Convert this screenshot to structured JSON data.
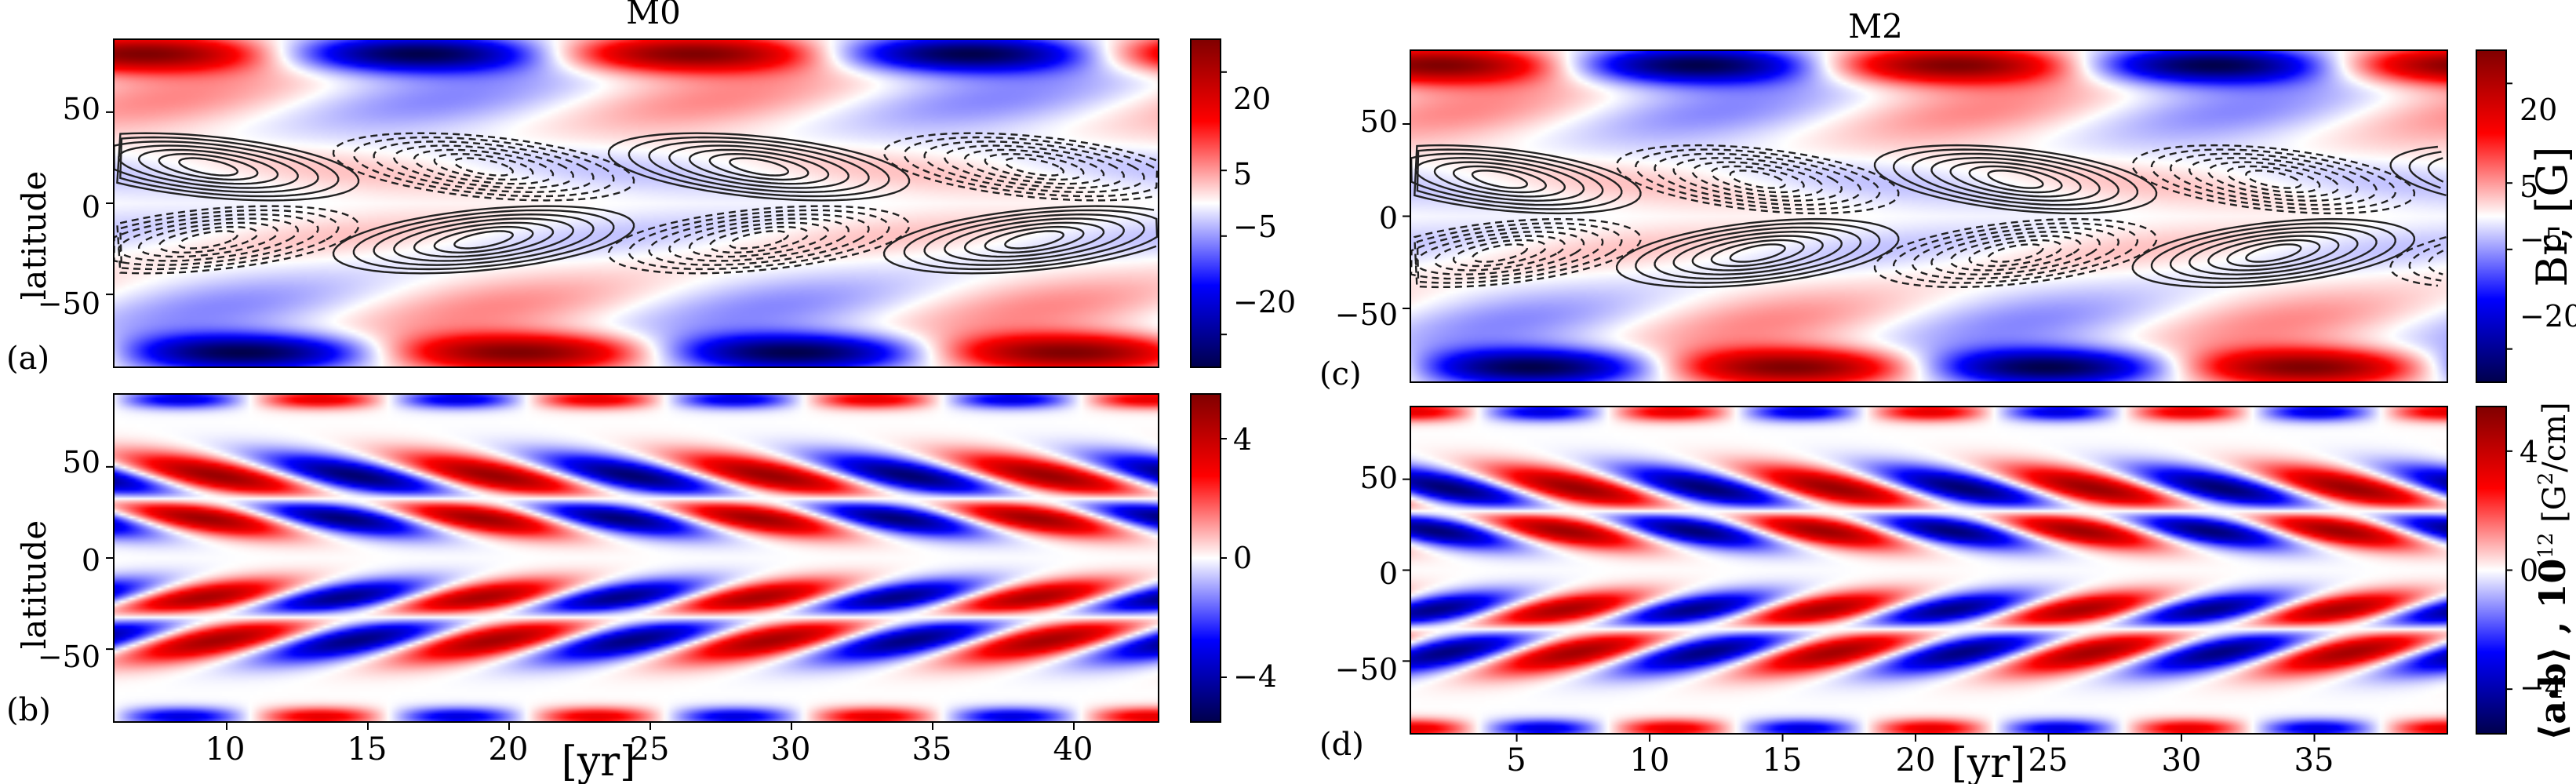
{
  "figure": {
    "panels": {
      "a": {
        "title": "M0",
        "letter": "(a)",
        "ylabel": "latitude",
        "yticks": [
          "50",
          "0",
          "−50"
        ]
      },
      "b": {
        "letter": "(b)",
        "ylabel": "latitude",
        "yticks": [
          "50",
          "0",
          "−50"
        ],
        "xticks": [
          "10",
          "15",
          "20",
          "25",
          "30",
          "35",
          "40"
        ],
        "xlabel": "[yr]"
      },
      "c": {
        "title": "M2",
        "letter": "(c)",
        "yticks": [
          "50",
          "0",
          "−50"
        ]
      },
      "d": {
        "letter": "(d)",
        "yticks": [
          "50",
          "0",
          "−50"
        ],
        "xticks": [
          "5",
          "10",
          "15",
          "20",
          "25",
          "30",
          "35"
        ],
        "xlabel": "[yr]"
      }
    },
    "colorbars": {
      "top_left": {
        "ticks": [
          "20",
          "5",
          "−5",
          "−20"
        ]
      },
      "bottom_left": {
        "ticks": [
          "4",
          "0",
          "−4"
        ]
      },
      "top_right": {
        "ticks": [
          "20",
          "5",
          "−5",
          "−20"
        ],
        "label": "Br, [G]"
      },
      "bottom_right": {
        "ticks": [
          "4",
          "0",
          "−4"
        ],
        "label_main": "⟨a·b⟩ , 10",
        "label_sup": "12",
        "label_unit": " [G",
        "label_sup2": "2",
        "label_end": "/cm]"
      }
    }
  },
  "chart_data": [
    {
      "type": "heatmap",
      "panel": "a",
      "title": "M0",
      "xlim": [
        6,
        43
      ],
      "ylim": [
        -90,
        90
      ],
      "yticks": [
        50,
        0,
        -50
      ],
      "ylabel": "latitude",
      "colorbar": {
        "range": [
          -25,
          25
        ],
        "ticks": [
          20,
          5,
          -5,
          -20
        ],
        "colormap": "seismic"
      },
      "field": "radial magnetic field Br (color) with toroidal field contours (solid positive, dashed negative)",
      "cycle_period_yr": 19.5
    },
    {
      "type": "heatmap",
      "panel": "b",
      "xlim": [
        6,
        43
      ],
      "ylim": [
        -90,
        90
      ],
      "xticks": [
        10,
        15,
        20,
        25,
        30,
        35,
        40
      ],
      "yticks": [
        50,
        0,
        -50
      ],
      "xlabel": "[yr]",
      "ylabel": "latitude",
      "colorbar": {
        "range": [
          -5.5,
          5.5
        ],
        "ticks": [
          4,
          0,
          -4
        ],
        "colormap": "seismic"
      },
      "cycle_period_yr": 9.8
    },
    {
      "type": "heatmap",
      "panel": "c",
      "title": "M2",
      "xlim": [
        1,
        40
      ],
      "ylim": [
        -90,
        90
      ],
      "yticks": [
        50,
        0,
        -50
      ],
      "colorbar": {
        "range": [
          -25,
          25
        ],
        "ticks": [
          20,
          5,
          -5,
          -20
        ],
        "label": "Br, [G]",
        "colormap": "seismic"
      },
      "cycle_period_yr": 19.4
    },
    {
      "type": "heatmap",
      "panel": "d",
      "xlim": [
        1,
        40
      ],
      "ylim": [
        -90,
        90
      ],
      "xticks": [
        5,
        10,
        15,
        20,
        25,
        30,
        35
      ],
      "yticks": [
        50,
        0,
        -50
      ],
      "xlabel": "[yr]",
      "colorbar": {
        "range": [
          -5.5,
          5.5
        ],
        "ticks": [
          4,
          0,
          -4
        ],
        "label": "⟨a·b⟩ , 10^12 [G^2/cm]",
        "colormap": "seismic"
      },
      "cycle_period_yr": 9.7
    }
  ]
}
